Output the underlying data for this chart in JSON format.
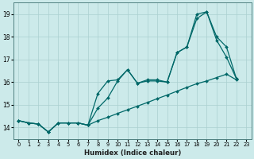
{
  "xlabel": "Humidex (Indice chaleur)",
  "color": "#006868",
  "bg_color": "#cceaea",
  "grid_color": "#aad0d0",
  "xlim": [
    -0.5,
    23.5
  ],
  "ylim": [
    13.5,
    19.5
  ],
  "yticks": [
    14,
    15,
    16,
    17,
    18,
    19
  ],
  "xticks": [
    0,
    1,
    2,
    3,
    4,
    5,
    6,
    7,
    8,
    9,
    10,
    11,
    12,
    13,
    14,
    15,
    16,
    17,
    18,
    19,
    20,
    21,
    22,
    23
  ],
  "upper_x": [
    0,
    1,
    2,
    3,
    4,
    5,
    6,
    7,
    8,
    9,
    10,
    11,
    12,
    13,
    14,
    15,
    16,
    17,
    18,
    19,
    20,
    21,
    22
  ],
  "upper_y": [
    14.3,
    14.2,
    14.15,
    13.8,
    14.2,
    14.2,
    14.2,
    14.1,
    15.5,
    16.05,
    16.1,
    16.55,
    15.95,
    16.1,
    16.1,
    16.0,
    17.3,
    17.55,
    19.0,
    19.1,
    18.0,
    17.55,
    16.15
  ],
  "mid_x": [
    0,
    1,
    2,
    3,
    4,
    5,
    6,
    7,
    8,
    9,
    10,
    11,
    12,
    13,
    14,
    15,
    16,
    17,
    18,
    19,
    20,
    21,
    22
  ],
  "mid_y": [
    14.3,
    14.2,
    14.15,
    13.8,
    14.2,
    14.2,
    14.2,
    14.1,
    14.85,
    15.3,
    16.05,
    16.55,
    15.95,
    16.05,
    16.05,
    16.0,
    17.3,
    17.55,
    18.8,
    19.1,
    17.85,
    17.1,
    16.15
  ],
  "low_x": [
    0,
    1,
    2,
    3,
    4,
    5,
    6,
    7,
    8,
    9,
    10,
    11,
    12,
    13,
    14,
    15,
    16,
    17,
    18,
    19,
    20,
    21,
    22
  ],
  "low_y": [
    14.3,
    14.2,
    14.15,
    13.8,
    14.2,
    14.2,
    14.2,
    14.1,
    14.3,
    14.45,
    14.62,
    14.78,
    14.94,
    15.1,
    15.27,
    15.43,
    15.6,
    15.77,
    15.93,
    16.05,
    16.2,
    16.35,
    16.1
  ]
}
